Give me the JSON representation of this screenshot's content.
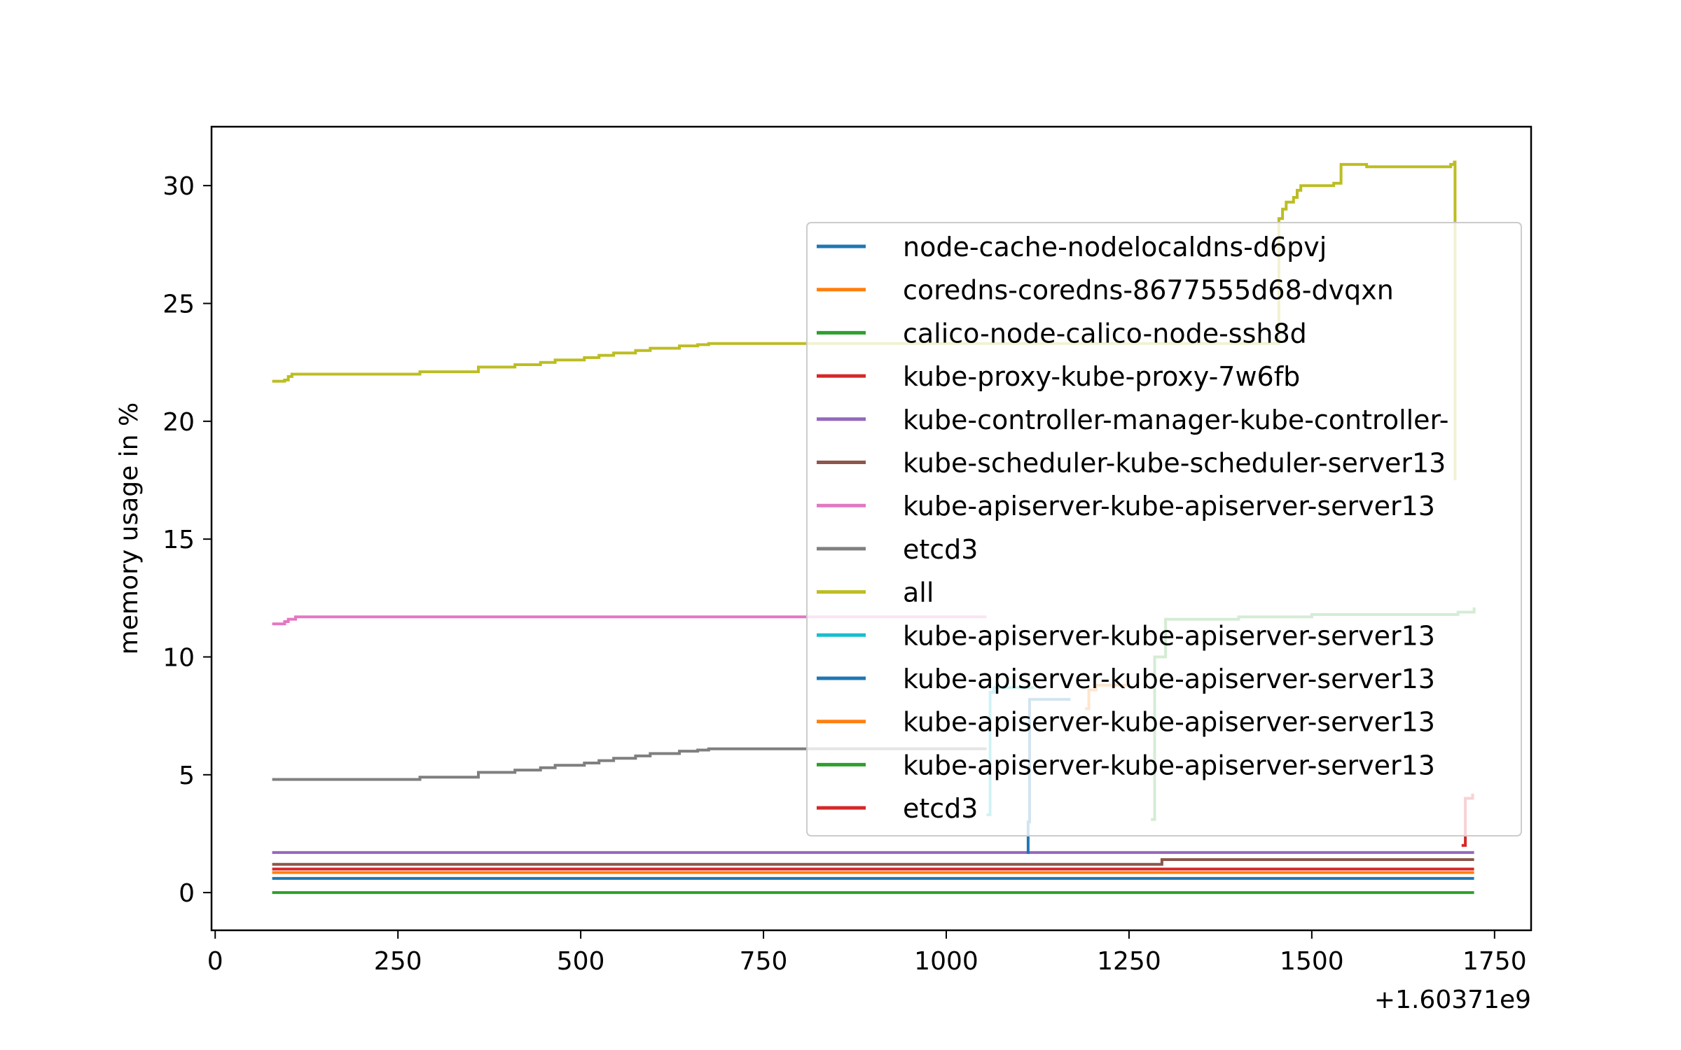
{
  "chart_data": {
    "type": "line",
    "title": "",
    "xlabel": "",
    "ylabel": "memory usage in %",
    "x_offset_text": "+1.60371e9",
    "xlim": [
      -5,
      1800
    ],
    "ylim": [
      -1.6,
      32.5
    ],
    "x_ticks": [
      0,
      250,
      500,
      750,
      1000,
      1250,
      1500,
      1750
    ],
    "y_ticks": [
      0,
      5,
      10,
      15,
      20,
      25,
      30
    ],
    "grid": false,
    "legend_position": "center-right",
    "series": [
      {
        "name": "node-cache-nodelocaldns-d6pvj",
        "color": "#1f77b4",
        "x": [
          78,
          1722
        ],
        "y": [
          0.6,
          0.6
        ]
      },
      {
        "name": "coredns-coredns-8677555d68-dvqxn",
        "color": "#ff7f0e",
        "x": [
          78,
          1722
        ],
        "y": [
          0.85,
          0.85
        ]
      },
      {
        "name": "calico-node-calico-node-ssh8d",
        "color": "#2ca02c",
        "x": [
          78,
          1722
        ],
        "y": [
          0.0,
          0.0
        ]
      },
      {
        "name": "kube-proxy-kube-proxy-7w6fb",
        "color": "#d62728",
        "x": [
          78,
          1722
        ],
        "y": [
          1.0,
          1.0
        ]
      },
      {
        "name": "kube-controller-manager-kube-controller-",
        "color": "#9467bd",
        "x": [
          78,
          1722
        ],
        "y": [
          1.7,
          1.7
        ]
      },
      {
        "name": "kube-scheduler-kube-scheduler-server13",
        "color": "#8c564b",
        "x": [
          78,
          1290,
          1295,
          1722
        ],
        "y": [
          1.2,
          1.2,
          1.4,
          1.4
        ]
      },
      {
        "name": "kube-apiserver-kube-apiserver-server13",
        "color": "#e377c2",
        "x": [
          78,
          90,
          95,
          100,
          110,
          1055
        ],
        "y": [
          11.4,
          11.4,
          11.5,
          11.6,
          11.7,
          11.7
        ]
      },
      {
        "name": "etcd3",
        "color": "#7f7f7f",
        "x": [
          78,
          275,
          280,
          355,
          360,
          405,
          410,
          440,
          445,
          460,
          465,
          500,
          505,
          520,
          525,
          540,
          545,
          570,
          575,
          590,
          595,
          630,
          635,
          655,
          660,
          670,
          675,
          1055
        ],
        "y": [
          4.8,
          4.8,
          4.9,
          4.9,
          5.1,
          5.1,
          5.2,
          5.2,
          5.3,
          5.3,
          5.4,
          5.4,
          5.5,
          5.5,
          5.6,
          5.6,
          5.7,
          5.7,
          5.8,
          5.8,
          5.9,
          5.9,
          6.0,
          6.0,
          6.05,
          6.05,
          6.1,
          6.1
        ]
      },
      {
        "name": "all",
        "color": "#bcbd22",
        "x": [
          78,
          90,
          95,
          100,
          105,
          110,
          275,
          280,
          355,
          360,
          405,
          410,
          440,
          445,
          460,
          465,
          500,
          505,
          520,
          525,
          540,
          545,
          570,
          575,
          590,
          595,
          630,
          635,
          655,
          660,
          670,
          675,
          1055,
          1455,
          1460,
          1465,
          1475,
          1480,
          1485,
          1490,
          1525,
          1530,
          1540,
          1545,
          1570,
          1575,
          1685,
          1690,
          1695,
          1696
        ],
        "y": [
          21.7,
          21.7,
          21.75,
          21.9,
          22.0,
          22.0,
          22.0,
          22.1,
          22.1,
          22.3,
          22.3,
          22.4,
          22.4,
          22.5,
          22.5,
          22.6,
          22.6,
          22.7,
          22.7,
          22.8,
          22.8,
          22.9,
          22.9,
          23.0,
          23.0,
          23.1,
          23.1,
          23.2,
          23.2,
          23.25,
          23.25,
          23.3,
          23.3,
          28.6,
          29.0,
          29.3,
          29.5,
          29.8,
          30.0,
          30.0,
          30.0,
          30.1,
          30.9,
          30.9,
          30.9,
          30.8,
          30.8,
          30.9,
          31.0,
          17.5
        ]
      },
      {
        "name": "kube-apiserver-kube-apiserver-server13",
        "color": "#17becf",
        "x": [
          1055,
          1060,
          1065,
          1120
        ],
        "y": [
          3.3,
          8.5,
          8.7,
          8.7
        ]
      },
      {
        "name": "kube-apiserver-kube-apiserver-server13",
        "color": "#1f77b4",
        "x": [
          1110,
          1112,
          1114,
          1170
        ],
        "y": [
          1.7,
          3.0,
          8.2,
          8.2
        ]
      },
      {
        "name": "kube-apiserver-kube-apiserver-server13",
        "color": "#ff7f0e",
        "x": [
          1190,
          1195,
          1205,
          1250
        ],
        "y": [
          7.8,
          8.6,
          8.8,
          8.8
        ]
      },
      {
        "name": "kube-apiserver-kube-apiserver-server13",
        "color": "#2ca02c",
        "x": [
          1280,
          1285,
          1300,
          1400,
          1500,
          1700,
          1722
        ],
        "y": [
          3.1,
          10.0,
          11.6,
          11.7,
          11.8,
          11.9,
          12.1
        ]
      },
      {
        "name": "etcd3",
        "color": "#d62728",
        "x": [
          1705,
          1710,
          1720
        ],
        "y": [
          2.0,
          4.0,
          4.2
        ]
      }
    ]
  }
}
